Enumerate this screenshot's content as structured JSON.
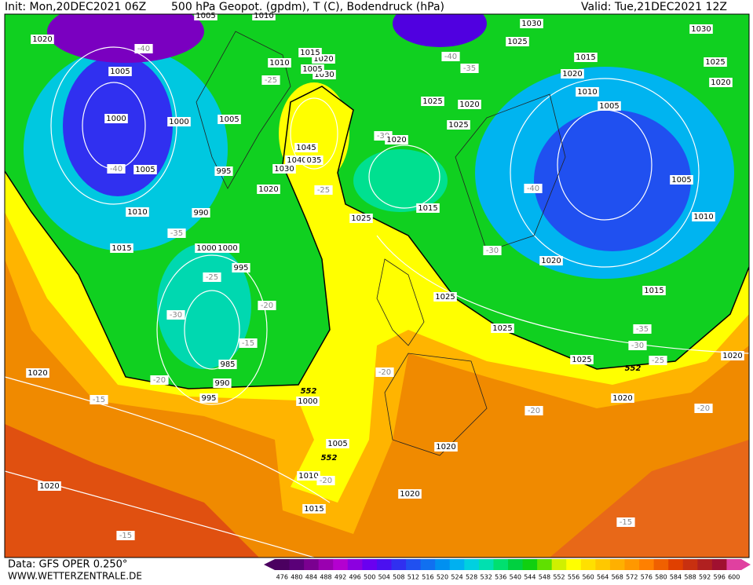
{
  "header": {
    "init": "Init: Mon,20DEC2021 06Z",
    "title": "500 hPa Geopot. (gpdm), T (C), Bodendruck (hPa)",
    "valid": "Valid: Tue,21DEC2021 12Z"
  },
  "footer": {
    "data": "Data: GFS OPER 0.250°",
    "site": "WWW.WETTERZENTRALE.DE"
  },
  "colorbar": {
    "labels": [
      476,
      480,
      484,
      488,
      492,
      496,
      500,
      504,
      508,
      512,
      516,
      520,
      524,
      528,
      532,
      536,
      540,
      544,
      548,
      552,
      556,
      560,
      564,
      568,
      572,
      576,
      580,
      584,
      588,
      592,
      596,
      600
    ],
    "colors": [
      "#4b0060",
      "#5a0078",
      "#7a0090",
      "#9a00b0",
      "#b400d0",
      "#8c00e0",
      "#6a00f0",
      "#4b10f0",
      "#3030f0",
      "#2050f0",
      "#1070f0",
      "#0090f0",
      "#00b0f0",
      "#00d0e0",
      "#00e0b0",
      "#00e070",
      "#00d040",
      "#10d010",
      "#60e000",
      "#d0f000",
      "#ffff00",
      "#ffe000",
      "#ffc800",
      "#ffb000",
      "#ff9800",
      "#ff8000",
      "#f06000",
      "#e04000",
      "#c83010",
      "#b02020",
      "#a01030",
      "#e040a0"
    ]
  },
  "map_labels": [
    "1005",
    "1010",
    "1020",
    "-40",
    "1005",
    "1000",
    "1000",
    "1005",
    "-40",
    "1005",
    "995",
    "990",
    "1010",
    "-35",
    "1015",
    "1000",
    "1000",
    "-25",
    "995",
    "-20",
    "-30",
    "-15",
    "985",
    "990",
    "-20",
    "995",
    "552",
    "1000",
    "1020",
    "-15",
    "1005",
    "552",
    "1010",
    "-20",
    "1015",
    "1020",
    "-15",
    "1020",
    "1020",
    "-20",
    "-20",
    "1025",
    "-25",
    "1020",
    "1030",
    "1040",
    "035",
    "1045",
    "1030",
    "1005",
    "1020",
    "1015",
    "1010",
    "-25",
    "1025",
    "1020",
    "1025",
    "-30",
    "1020",
    "1015",
    "-40",
    "-35",
    "1025",
    "1030",
    "1030",
    "1015",
    "1025",
    "1020",
    "1020",
    "1010",
    "1005",
    "-40",
    "1005",
    "1010",
    "-30",
    "1020",
    "1015",
    "1025",
    "1025",
    "-35",
    "-30",
    "-25",
    "1025",
    "552",
    "1020",
    "1020",
    "-20",
    "-15"
  ]
}
